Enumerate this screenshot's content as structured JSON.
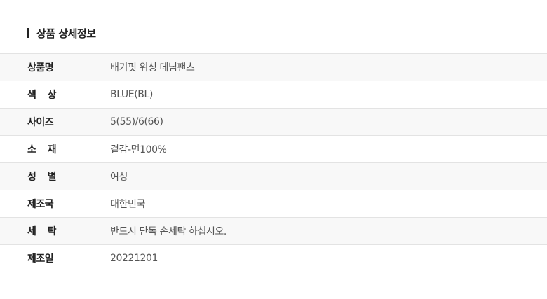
{
  "section_title": "상품 상세정보",
  "rows": [
    {
      "label": "상품명",
      "value": "배기핏 워싱 데님팬츠"
    },
    {
      "label": "색 상",
      "value": "BLUE(BL)"
    },
    {
      "label": "사이즈",
      "value": "5(55)/6(66)"
    },
    {
      "label": "소 재",
      "value": "겉감-면100%"
    },
    {
      "label": "성 별",
      "value": "여성"
    },
    {
      "label": "제조국",
      "value": "대한민국"
    },
    {
      "label": "세 탁",
      "value": "반드시 단독 손세탁 하십시오."
    },
    {
      "label": "제조일",
      "value": "20221201"
    }
  ]
}
